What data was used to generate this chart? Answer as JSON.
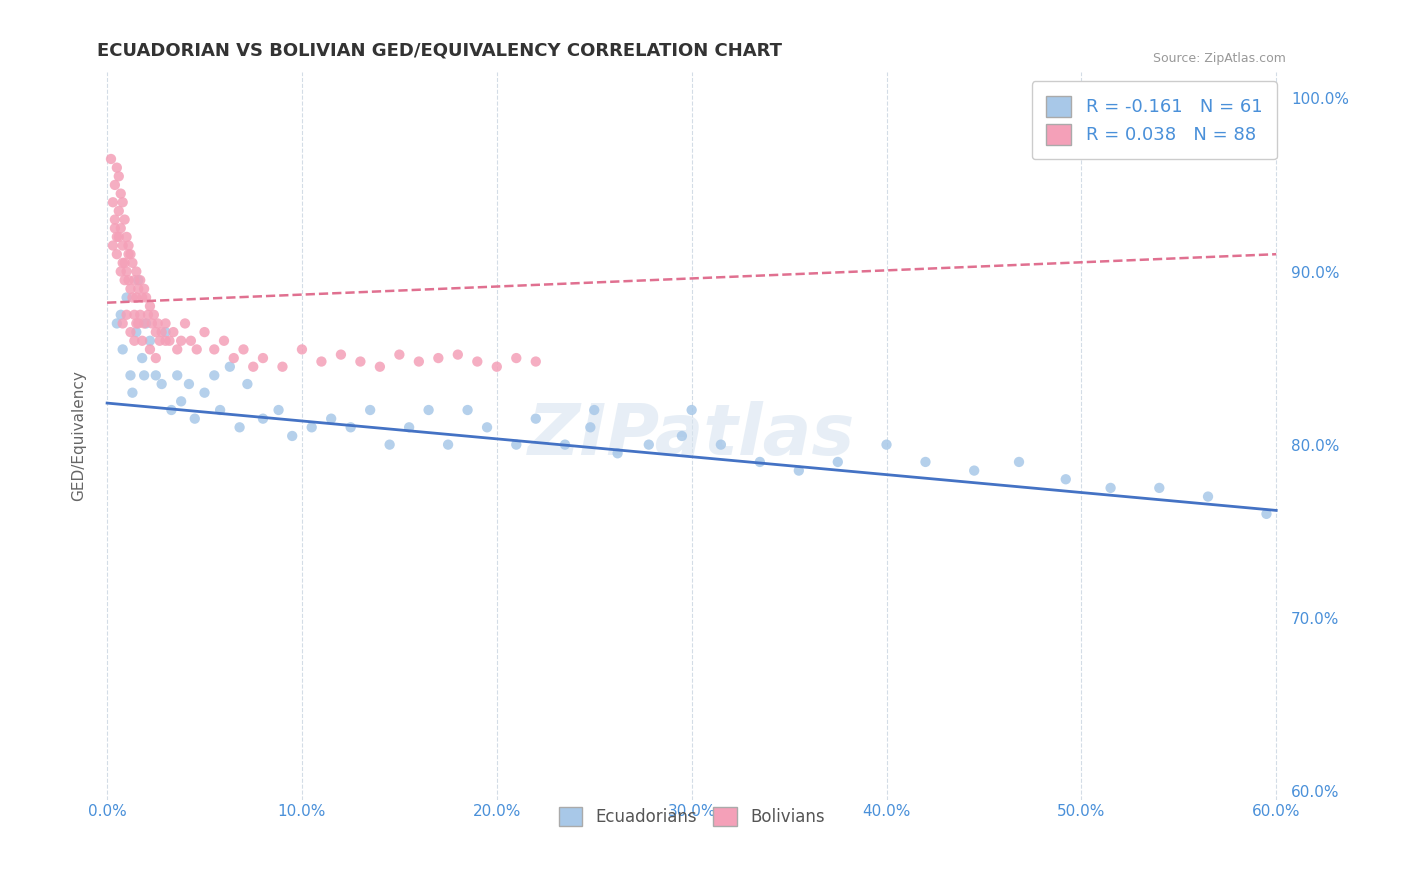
{
  "title": "ECUADORIAN VS BOLIVIAN GED/EQUIVALENCY CORRELATION CHART",
  "source": "Source: ZipAtlas.com",
  "ylabel": "GED/Equivalency",
  "xlim": [
    -0.005,
    0.605
  ],
  "ylim": [
    0.595,
    1.015
  ],
  "xticks": [
    0.0,
    0.1,
    0.2,
    0.3,
    0.4,
    0.5,
    0.6
  ],
  "xticklabels": [
    "0.0%",
    "10.0%",
    "20.0%",
    "30.0%",
    "40.0%",
    "50.0%",
    "60.0%"
  ],
  "yticks": [
    0.6,
    0.7,
    0.8,
    0.9,
    1.0
  ],
  "yticklabels": [
    "60.0%",
    "70.0%",
    "80.0%",
    "90.0%",
    "100.0%"
  ],
  "ecuadorians_R": -0.161,
  "ecuadorians_N": 61,
  "bolivians_R": 0.038,
  "bolivians_N": 88,
  "blue_color": "#a8c8e8",
  "pink_color": "#f4a0b8",
  "blue_line": "#4472c4",
  "pink_line": "#e07090",
  "legend_label_blue": "Ecuadorians",
  "legend_label_pink": "Bolivians",
  "ecuadorians_x": [
    0.005,
    0.007,
    0.008,
    0.01,
    0.012,
    0.013,
    0.015,
    0.016,
    0.018,
    0.019,
    0.02,
    0.022,
    0.025,
    0.028,
    0.03,
    0.033,
    0.036,
    0.038,
    0.042,
    0.045,
    0.05,
    0.055,
    0.058,
    0.063,
    0.068,
    0.072,
    0.08,
    0.088,
    0.095,
    0.105,
    0.115,
    0.125,
    0.135,
    0.145,
    0.155,
    0.165,
    0.175,
    0.185,
    0.195,
    0.21,
    0.22,
    0.235,
    0.248,
    0.262,
    0.278,
    0.295,
    0.315,
    0.335,
    0.355,
    0.375,
    0.4,
    0.42,
    0.445,
    0.468,
    0.492,
    0.515,
    0.54,
    0.565,
    0.595,
    0.3,
    0.25
  ],
  "ecuadorians_y": [
    0.87,
    0.875,
    0.855,
    0.885,
    0.84,
    0.83,
    0.865,
    0.895,
    0.85,
    0.84,
    0.87,
    0.86,
    0.84,
    0.835,
    0.865,
    0.82,
    0.84,
    0.825,
    0.835,
    0.815,
    0.83,
    0.84,
    0.82,
    0.845,
    0.81,
    0.835,
    0.815,
    0.82,
    0.805,
    0.81,
    0.815,
    0.81,
    0.82,
    0.8,
    0.81,
    0.82,
    0.8,
    0.82,
    0.81,
    0.8,
    0.815,
    0.8,
    0.81,
    0.795,
    0.8,
    0.805,
    0.8,
    0.79,
    0.785,
    0.79,
    0.8,
    0.79,
    0.785,
    0.79,
    0.78,
    0.775,
    0.775,
    0.77,
    0.76,
    0.82,
    0.82
  ],
  "bolivians_x": [
    0.002,
    0.003,
    0.004,
    0.004,
    0.005,
    0.005,
    0.006,
    0.006,
    0.007,
    0.007,
    0.008,
    0.008,
    0.009,
    0.009,
    0.01,
    0.01,
    0.011,
    0.011,
    0.012,
    0.012,
    0.013,
    0.013,
    0.014,
    0.014,
    0.015,
    0.015,
    0.016,
    0.017,
    0.017,
    0.018,
    0.019,
    0.019,
    0.02,
    0.021,
    0.022,
    0.023,
    0.024,
    0.025,
    0.026,
    0.027,
    0.028,
    0.03,
    0.032,
    0.034,
    0.036,
    0.038,
    0.04,
    0.043,
    0.046,
    0.05,
    0.055,
    0.06,
    0.065,
    0.07,
    0.075,
    0.08,
    0.09,
    0.1,
    0.11,
    0.12,
    0.13,
    0.14,
    0.15,
    0.16,
    0.17,
    0.18,
    0.19,
    0.2,
    0.21,
    0.22,
    0.015,
    0.018,
    0.022,
    0.025,
    0.03,
    0.008,
    0.01,
    0.012,
    0.014,
    0.016,
    0.006,
    0.005,
    0.004,
    0.003,
    0.007,
    0.008,
    0.009,
    0.011
  ],
  "bolivians_y": [
    0.965,
    0.94,
    0.93,
    0.95,
    0.96,
    0.92,
    0.955,
    0.935,
    0.945,
    0.925,
    0.94,
    0.915,
    0.93,
    0.905,
    0.92,
    0.9,
    0.915,
    0.895,
    0.91,
    0.89,
    0.905,
    0.885,
    0.895,
    0.875,
    0.9,
    0.885,
    0.89,
    0.895,
    0.875,
    0.885,
    0.89,
    0.87,
    0.885,
    0.875,
    0.88,
    0.87,
    0.875,
    0.865,
    0.87,
    0.86,
    0.865,
    0.87,
    0.86,
    0.865,
    0.855,
    0.86,
    0.87,
    0.86,
    0.855,
    0.865,
    0.855,
    0.86,
    0.85,
    0.855,
    0.845,
    0.85,
    0.845,
    0.855,
    0.848,
    0.852,
    0.848,
    0.845,
    0.852,
    0.848,
    0.85,
    0.852,
    0.848,
    0.845,
    0.85,
    0.848,
    0.87,
    0.86,
    0.855,
    0.85,
    0.86,
    0.87,
    0.875,
    0.865,
    0.86,
    0.87,
    0.92,
    0.91,
    0.925,
    0.915,
    0.9,
    0.905,
    0.895,
    0.91
  ],
  "ecu_trend_x": [
    0.0,
    0.6
  ],
  "ecu_trend_y": [
    0.824,
    0.762
  ],
  "bol_trend_x": [
    0.0,
    0.6
  ],
  "bol_trend_y": [
    0.882,
    0.91
  ]
}
